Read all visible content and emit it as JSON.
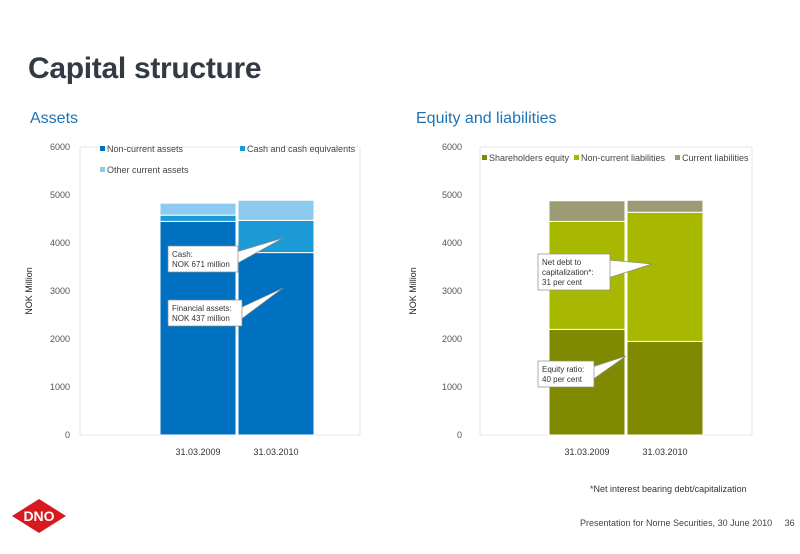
{
  "title": "Capital structure",
  "footnote": "*Net interest bearing debt/capitalization",
  "footer": "Presentation for Norne Securities, 30 June 2010",
  "page_number": "36",
  "logo_text": "DNO",
  "colors": {
    "accent": "#1e73b5",
    "logo_red": "#d71920"
  },
  "chart_data": [
    {
      "type": "bar",
      "stacked": true,
      "title": "Assets",
      "xlabel": "",
      "ylabel": "NOK Million",
      "ylim": [
        0,
        6000
      ],
      "yticks": [
        "0",
        "1000",
        "2000",
        "3000",
        "4000",
        "5000",
        "6000"
      ],
      "categories": [
        "31.03.2009",
        "31.03.2010"
      ],
      "legend_position": "top",
      "series": [
        {
          "name": "Non-current assets",
          "values": [
            4450,
            3800
          ],
          "color": "#0070c0"
        },
        {
          "name": "Cash and cash equivalents",
          "values": [
            130,
            671
          ],
          "color": "#1b9ad6"
        },
        {
          "name": "Other current assets",
          "values": [
            250,
            420
          ],
          "color": "#8ccaf0"
        }
      ],
      "annotations": [
        {
          "lines": [
            "Cash:",
            "NOK 671 million"
          ]
        },
        {
          "lines": [
            "Financial assets:",
            "NOK  437 million"
          ]
        }
      ]
    },
    {
      "type": "bar",
      "stacked": true,
      "title": "Equity and liabilities",
      "xlabel": "",
      "ylabel": "NOK Million",
      "ylim": [
        0,
        6000
      ],
      "yticks": [
        "0",
        "1000",
        "2000",
        "3000",
        "4000",
        "5000",
        "6000"
      ],
      "categories": [
        "31.03.2009",
        "31.03.2010"
      ],
      "legend_position": "top",
      "series": [
        {
          "name": "Shareholders equity",
          "values": [
            2200,
            1950
          ],
          "color": "#808a00"
        },
        {
          "name": "Non-current liabilities",
          "values": [
            2250,
            2690
          ],
          "color": "#a8b800"
        },
        {
          "name": "Current liabilities",
          "values": [
            430,
            250
          ],
          "color": "#9c9c74"
        }
      ],
      "annotations": [
        {
          "lines": [
            "Net debt to",
            "capitalization*:",
            "31 per cent"
          ]
        },
        {
          "lines": [
            "Equity ratio:",
            " 40 per cent"
          ]
        }
      ]
    }
  ]
}
